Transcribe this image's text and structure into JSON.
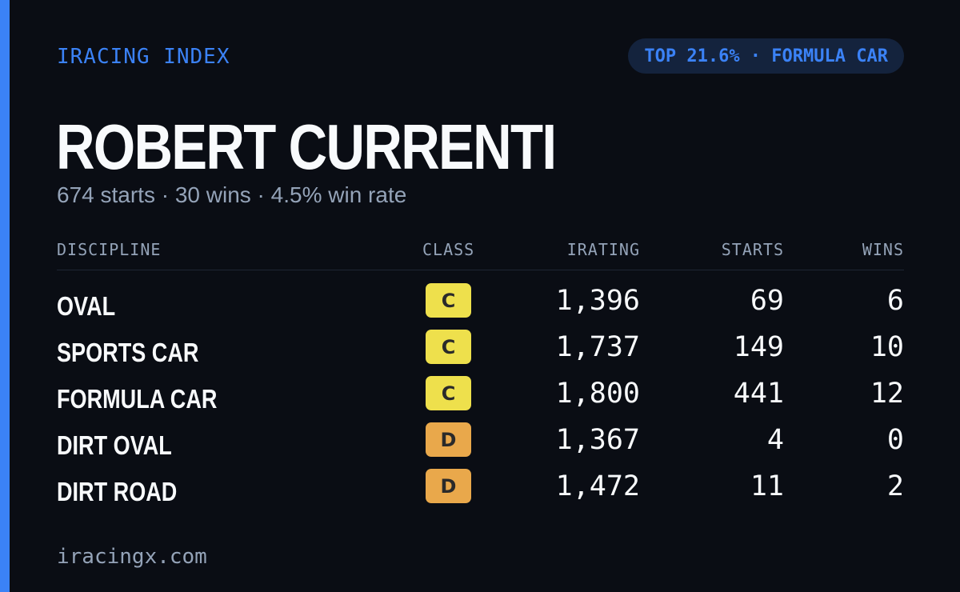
{
  "brand": "IRACING INDEX",
  "rank_badge": "TOP 21.6% · FORMULA CAR",
  "driver_name": "ROBERT CURRENTI",
  "summary": "674 starts · 30 wins · 4.5% win rate",
  "columns": {
    "discipline": "DISCIPLINE",
    "class": "CLASS",
    "irating": "IRATING",
    "starts": "STARTS",
    "wins": "WINS"
  },
  "rows": [
    {
      "discipline": "OVAL",
      "class": "C",
      "irating": "1,396",
      "starts": "69",
      "wins": "6"
    },
    {
      "discipline": "SPORTS CAR",
      "class": "C",
      "irating": "1,737",
      "starts": "149",
      "wins": "10"
    },
    {
      "discipline": "FORMULA CAR",
      "class": "C",
      "irating": "1,800",
      "starts": "441",
      "wins": "12"
    },
    {
      "discipline": "DIRT OVAL",
      "class": "D",
      "irating": "1,367",
      "starts": "4",
      "wins": "0"
    },
    {
      "discipline": "DIRT ROAD",
      "class": "D",
      "irating": "1,472",
      "starts": "11",
      "wins": "2"
    }
  ],
  "class_colors": {
    "C": "#eee04c",
    "D": "#e9a84b"
  },
  "accent_color": "#3b82f6",
  "footer": "iracingx.com"
}
